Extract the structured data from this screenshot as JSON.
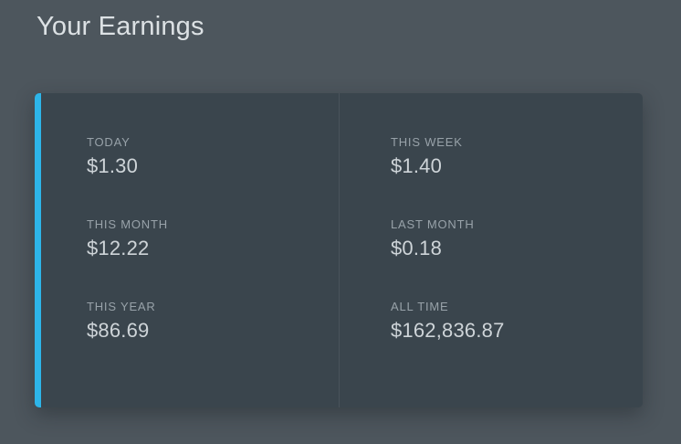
{
  "page": {
    "title": "Your Earnings"
  },
  "colors": {
    "page_background": "#4d565d",
    "card_background": "#3a454d",
    "accent": "#2db5e9",
    "label_text": "#98a2a9",
    "value_text": "#ced4d8",
    "title_text": "#dce1e4"
  },
  "earnings": {
    "stats": [
      {
        "label": "TODAY",
        "value": "$1.30"
      },
      {
        "label": "THIS WEEK",
        "value": "$1.40"
      },
      {
        "label": "THIS MONTH",
        "value": "$12.22"
      },
      {
        "label": "LAST MONTH",
        "value": "$0.18"
      },
      {
        "label": "THIS YEAR",
        "value": "$86.69"
      },
      {
        "label": "ALL TIME",
        "value": "$162,836.87"
      }
    ]
  }
}
